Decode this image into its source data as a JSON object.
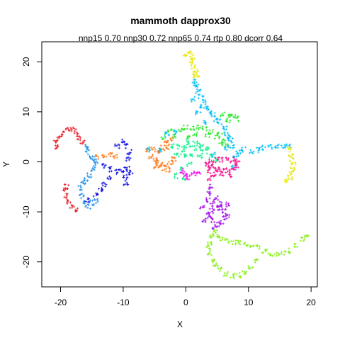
{
  "chart_data": {
    "type": "scatter",
    "title": "mammoth dapprox30",
    "subtitle": "nnp15 0.70 nnp30 0.72 nnp65 0.74 rtp 0.80 dcorr 0.64",
    "xlabel": "X",
    "ylabel": "Y",
    "xlim": [
      -23,
      21
    ],
    "ylim": [
      -25,
      24
    ],
    "xticks": [
      -20,
      -10,
      0,
      10,
      20
    ],
    "yticks": [
      -20,
      -10,
      0,
      10,
      20
    ],
    "grid": false,
    "legend": "none",
    "point_style": "small plus marks",
    "series": [
      {
        "color": "#e8202a",
        "points": [
          [
            -20.5,
            3.0
          ],
          [
            -20.8,
            3.8
          ],
          [
            -20.2,
            4.8
          ],
          [
            -19.5,
            5.8
          ],
          [
            -18.8,
            6.4
          ],
          [
            -18.2,
            6.5
          ],
          [
            -17.6,
            6.0
          ],
          [
            -17.0,
            5.0
          ],
          [
            -16.5,
            4.0
          ],
          [
            -19.0,
            -5.0
          ],
          [
            -19.2,
            -5.8
          ],
          [
            -19.0,
            -6.8
          ],
          [
            -18.6,
            -8.0
          ],
          [
            -18.2,
            -8.8
          ],
          [
            -17.6,
            -9.4
          ]
        ]
      },
      {
        "color": "#1f8fe8",
        "points": [
          [
            -16.0,
            3.0
          ],
          [
            -15.6,
            2.0
          ],
          [
            -15.0,
            1.0
          ],
          [
            -14.6,
            0.2
          ],
          [
            -14.4,
            -0.6
          ],
          [
            -14.8,
            -1.6
          ],
          [
            -15.4,
            -2.6
          ],
          [
            -16.0,
            -3.6
          ],
          [
            -16.4,
            -4.2
          ],
          [
            -16.8,
            -5.2
          ],
          [
            -16.6,
            -6.8
          ],
          [
            -16.2,
            -8.2
          ],
          [
            -15.6,
            -9.0
          ],
          [
            -15.0,
            -8.2
          ],
          [
            -14.2,
            -7.8
          ]
        ]
      },
      {
        "color": "#ff7a1a",
        "points": [
          [
            -14.0,
            1.0
          ],
          [
            -13.0,
            1.2
          ],
          [
            -12.0,
            1.5
          ],
          [
            -11.2,
            1.0
          ],
          [
            -5.5,
            1.0
          ],
          [
            -5.0,
            0.5
          ],
          [
            -4.5,
            0.0
          ],
          [
            -4.0,
            -0.6
          ],
          [
            -3.6,
            -1.2
          ],
          [
            -3.0,
            -0.8
          ],
          [
            -2.4,
            -0.2
          ],
          [
            -2.0,
            0.6
          ],
          [
            -3.0,
            3.0
          ],
          [
            -2.5,
            4.5
          ],
          [
            -4.2,
            1.8
          ],
          [
            -6.0,
            2.2
          ],
          [
            -5.2,
            2.5
          ],
          [
            -3.2,
            4.2
          ],
          [
            -3.8,
            2.8
          ],
          [
            -2.8,
            -1.6
          ],
          [
            -4.8,
            -1.0
          ]
        ]
      },
      {
        "color": "#1010e0",
        "points": [
          [
            -13.0,
            -0.8
          ],
          [
            -12.0,
            -1.5
          ],
          [
            -11.0,
            -2.0
          ],
          [
            -12.2,
            -3.0
          ],
          [
            -13.0,
            -4.5
          ],
          [
            -13.6,
            -5.6
          ],
          [
            -14.4,
            -6.6
          ],
          [
            -15.6,
            -7.6
          ],
          [
            -11.0,
            3.0
          ],
          [
            -10.0,
            4.0
          ],
          [
            -9.4,
            3.2
          ],
          [
            -9.0,
            2.0
          ],
          [
            -9.2,
            0.6
          ],
          [
            -9.4,
            -1.5
          ],
          [
            -9.6,
            -3.0
          ],
          [
            -9.6,
            -4.2
          ],
          [
            -8.8,
            -2.2
          ],
          [
            -10.2,
            -1.6
          ]
        ]
      },
      {
        "color": "#2de82d",
        "points": [
          [
            -3.5,
            5.0
          ],
          [
            -2.5,
            6.0
          ],
          [
            -1.0,
            6.5
          ],
          [
            0.0,
            6.8
          ],
          [
            1.0,
            6.8
          ],
          [
            2.0,
            6.8
          ],
          [
            3.0,
            6.6
          ],
          [
            4.0,
            6.0
          ],
          [
            5.0,
            5.0
          ],
          [
            5.6,
            3.6
          ],
          [
            6.4,
            3.2
          ],
          [
            6.0,
            4.0
          ],
          [
            5.4,
            5.4
          ],
          [
            5.8,
            9.6
          ],
          [
            6.8,
            9.2
          ],
          [
            7.6,
            9.0
          ],
          [
            8.2,
            8.6
          ],
          [
            -2.0,
            5.0
          ],
          [
            1.5,
            5.6
          ],
          [
            3.5,
            5.2
          ],
          [
            0.2,
            5.2
          ],
          [
            6.8,
            8.2
          ]
        ]
      },
      {
        "color": "#17f090",
        "points": [
          [
            -2.0,
            3.2
          ],
          [
            -1.0,
            3.0
          ],
          [
            0.0,
            3.0
          ],
          [
            1.0,
            2.8
          ],
          [
            2.0,
            2.6
          ],
          [
            3.0,
            2.0
          ],
          [
            4.0,
            1.2
          ],
          [
            4.8,
            0.4
          ],
          [
            0.5,
            4.0
          ],
          [
            1.5,
            3.6
          ],
          [
            2.5,
            3.2
          ],
          [
            3.5,
            2.6
          ],
          [
            -0.5,
            2.0
          ],
          [
            1.0,
            1.4
          ],
          [
            2.2,
            1.0
          ],
          [
            0.0,
            1.0
          ],
          [
            -1.5,
            1.5
          ],
          [
            0.5,
            -0.5
          ],
          [
            -0.8,
            -1.5
          ],
          [
            -1.5,
            -2.8
          ],
          [
            -0.2,
            -3.2
          ]
        ]
      },
      {
        "color": "#00bff5",
        "points": [
          [
            1.4,
            16.0
          ],
          [
            1.6,
            15.0
          ],
          [
            2.0,
            14.0
          ],
          [
            2.4,
            13.0
          ],
          [
            2.8,
            12.0
          ],
          [
            3.2,
            11.0
          ],
          [
            3.8,
            10.0
          ],
          [
            4.4,
            9.4
          ],
          [
            4.8,
            8.4
          ],
          [
            5.4,
            8.0
          ],
          [
            6.2,
            6.6
          ],
          [
            6.8,
            5.0
          ],
          [
            7.2,
            4.2
          ],
          [
            6.4,
            2.8
          ],
          [
            7.4,
            3.2
          ],
          [
            8.4,
            2.0
          ],
          [
            9.2,
            2.4
          ],
          [
            10.5,
            2.2
          ],
          [
            11.5,
            2.4
          ],
          [
            12.5,
            2.8
          ],
          [
            13.5,
            3.0
          ],
          [
            14.5,
            3.0
          ],
          [
            15.5,
            3.2
          ],
          [
            16.4,
            3.0
          ],
          [
            -4.0,
            2.2
          ],
          [
            -6.0,
            2.5
          ],
          [
            -3.0,
            5.5
          ],
          [
            -1.5,
            5.8
          ],
          [
            3.2,
            8.0
          ],
          [
            2.2,
            11.2
          ],
          [
            1.2,
            12.5
          ],
          [
            2.0,
            9.8
          ],
          [
            6.5,
            5.4
          ],
          [
            8.0,
            1.0
          ],
          [
            4.5,
            1.4
          ],
          [
            7.6,
            -1.2
          ]
        ]
      },
      {
        "color": "#f5148c",
        "points": [
          [
            3.4,
            -0.6
          ],
          [
            4.0,
            -1.0
          ],
          [
            4.6,
            -1.4
          ],
          [
            5.2,
            -1.6
          ],
          [
            6.0,
            -1.8
          ],
          [
            6.8,
            -1.6
          ],
          [
            7.4,
            -1.4
          ],
          [
            8.0,
            -0.8
          ],
          [
            8.2,
            0.0
          ],
          [
            7.6,
            0.6
          ],
          [
            6.8,
            0.4
          ],
          [
            5.6,
            0.4
          ],
          [
            4.8,
            0.4
          ],
          [
            4.0,
            0.0
          ],
          [
            3.8,
            -1.8
          ],
          [
            4.4,
            -2.6
          ],
          [
            5.8,
            -2.4
          ],
          [
            7.2,
            -2.6
          ],
          [
            3.8,
            -3.2
          ]
        ]
      },
      {
        "color": "#ee10ee",
        "points": [
          [
            -0.5,
            -1.8
          ],
          [
            -0.2,
            -2.6
          ],
          [
            0.4,
            -3.0
          ],
          [
            1.2,
            -2.4
          ],
          [
            2.0,
            -2.2
          ]
        ]
      },
      {
        "color": "#a315e8",
        "points": [
          [
            4.0,
            -5.0
          ],
          [
            3.8,
            -6.2
          ],
          [
            3.6,
            -7.6
          ],
          [
            4.2,
            -8.4
          ],
          [
            5.0,
            -9.0
          ],
          [
            4.2,
            -9.8
          ],
          [
            3.8,
            -10.8
          ],
          [
            4.4,
            -11.6
          ],
          [
            5.0,
            -12.6
          ],
          [
            5.6,
            -12.2
          ],
          [
            6.2,
            -11.2
          ],
          [
            6.6,
            -10.6
          ],
          [
            6.0,
            -9.8
          ],
          [
            5.4,
            -9.2
          ],
          [
            3.6,
            -10.2
          ],
          [
            4.8,
            -7.2
          ],
          [
            5.6,
            -8.4
          ],
          [
            6.8,
            -8.6
          ],
          [
            2.6,
            -9.0
          ],
          [
            3.0,
            -11.6
          ],
          [
            4.6,
            -13.0
          ]
        ]
      },
      {
        "color": "#8af018",
        "points": [
          [
            4.6,
            -14.0
          ],
          [
            5.0,
            -14.6
          ],
          [
            5.6,
            -15.4
          ],
          [
            6.6,
            -15.8
          ],
          [
            7.6,
            -16.0
          ],
          [
            8.6,
            -16.2
          ],
          [
            9.6,
            -16.4
          ],
          [
            10.6,
            -16.8
          ],
          [
            11.6,
            -17.2
          ],
          [
            12.6,
            -17.8
          ],
          [
            13.6,
            -18.4
          ],
          [
            14.6,
            -18.4
          ],
          [
            15.6,
            -18.2
          ],
          [
            16.6,
            -17.8
          ],
          [
            17.6,
            -16.8
          ],
          [
            18.6,
            -15.6
          ],
          [
            19.2,
            -15.0
          ],
          [
            4.2,
            -15.0
          ],
          [
            3.8,
            -16.2
          ],
          [
            3.6,
            -17.2
          ],
          [
            3.8,
            -18.2
          ],
          [
            4.4,
            -19.6
          ],
          [
            4.8,
            -20.6
          ],
          [
            5.4,
            -21.4
          ],
          [
            6.4,
            -22.4
          ],
          [
            7.4,
            -22.8
          ],
          [
            8.4,
            -22.6
          ],
          [
            9.4,
            -22.0
          ],
          [
            10.4,
            -21.0
          ],
          [
            11.2,
            -20.0
          ]
        ]
      },
      {
        "color": "#e8e80a",
        "points": [
          [
            0.0,
            21.5
          ],
          [
            0.6,
            21.8
          ],
          [
            1.0,
            21.0
          ],
          [
            1.0,
            20.0
          ],
          [
            1.2,
            19.0
          ],
          [
            1.6,
            18.0
          ],
          [
            1.4,
            17.4
          ],
          [
            1.8,
            17.0
          ],
          [
            16.6,
            2.6
          ],
          [
            16.8,
            1.6
          ],
          [
            17.0,
            0.6
          ],
          [
            17.2,
            -0.4
          ],
          [
            17.0,
            -1.4
          ],
          [
            16.8,
            -2.4
          ],
          [
            16.6,
            -3.2
          ],
          [
            16.2,
            -3.8
          ]
        ]
      }
    ]
  }
}
